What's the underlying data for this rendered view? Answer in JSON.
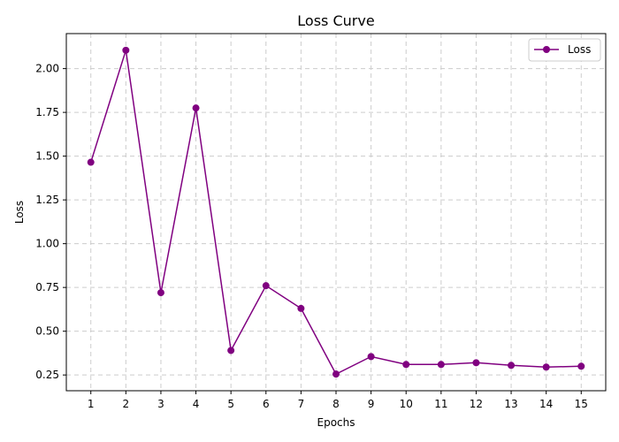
{
  "chart_data": {
    "type": "line",
    "title": "Loss Curve",
    "xlabel": "Epochs",
    "ylabel": "Loss",
    "x": [
      1,
      2,
      3,
      4,
      5,
      6,
      7,
      8,
      9,
      10,
      11,
      12,
      13,
      14,
      15
    ],
    "x_ticks": [
      "1",
      "2",
      "3",
      "4",
      "5",
      "6",
      "7",
      "8",
      "9",
      "10",
      "11",
      "12",
      "13",
      "14",
      "15"
    ],
    "xlim": [
      0.3,
      15.7
    ],
    "ylim": [
      0.16,
      2.2
    ],
    "y_ticks": [
      0.25,
      0.5,
      0.75,
      1.0,
      1.25,
      1.5,
      1.75,
      2.0
    ],
    "y_tick_labels": [
      "0.25",
      "0.50",
      "0.75",
      "1.00",
      "1.25",
      "1.50",
      "1.75",
      "2.00"
    ],
    "grid": true,
    "legend_position": "top-right",
    "series": [
      {
        "name": "Loss",
        "color": "#800080",
        "marker": "circle",
        "values": [
          1.465,
          2.105,
          0.72,
          1.775,
          0.39,
          0.76,
          0.63,
          0.255,
          0.355,
          0.31,
          0.31,
          0.32,
          0.305,
          0.295,
          0.3
        ]
      }
    ]
  }
}
